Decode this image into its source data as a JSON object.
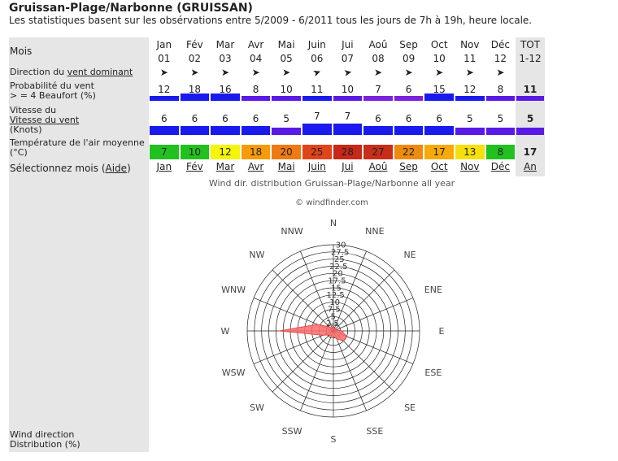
{
  "header": {
    "title": "Gruissan-Plage/Narbonne (GRUISSAN)",
    "subtitle": "Les statistiques basent sur les obsérvations entre 5/2009 - 6/2011 tous les jours de 7h à 19h, heure locale."
  },
  "labels": {
    "mois": "Mois",
    "direction_prefix": "Direction du ",
    "direction_link": "vent dominant",
    "prob_line1": "Probabilité du vent",
    "prob_line2": "> = 4 Beaufort (%)",
    "speed_line1": "Vitesse du",
    "speed_link": "Vitesse du vent",
    "speed_line3": "(Knots)",
    "temp_line1": "Température de l'air moyenne",
    "temp_line2": "(°C)",
    "select_prefix": "Sélectionnez mois (",
    "select_link": "Aide",
    "select_suffix": ")",
    "wind_dist_line1": "Wind direction",
    "wind_dist_line2": "Distribution (%)"
  },
  "months": [
    {
      "name": "Jan",
      "num": "01",
      "dir": "➤",
      "prob": "12",
      "speed": "6",
      "temp": "7",
      "sel": "Jan",
      "tempcolor": "#22c11f",
      "probcolor": "#1a1aee",
      "speedcolor": "#1a1aee"
    },
    {
      "name": "Fév",
      "num": "02",
      "dir": "➤",
      "prob": "18",
      "speed": "6",
      "temp": "10",
      "sel": "Fév",
      "tempcolor": "#22c11f",
      "probcolor": "#1a1aee",
      "speedcolor": "#1a1aee"
    },
    {
      "name": "Mar",
      "num": "03",
      "dir": "➤",
      "prob": "16",
      "speed": "6",
      "temp": "12",
      "sel": "Mar",
      "tempcolor": "#f5f50a",
      "probcolor": "#1a1aee",
      "speedcolor": "#1a1aee"
    },
    {
      "name": "Avr",
      "num": "04",
      "dir": "➤",
      "prob": "8",
      "speed": "6",
      "temp": "18",
      "sel": "Avr",
      "tempcolor": "#f59b0a",
      "probcolor": "#5a1ae6",
      "speedcolor": "#1a1aee"
    },
    {
      "name": "Mai",
      "num": "05",
      "dir": "➤",
      "prob": "10",
      "speed": "5",
      "temp": "20",
      "sel": "Mai",
      "tempcolor": "#ee7a12",
      "probcolor": "#5a1ae6",
      "speedcolor": "#5a1ae6"
    },
    {
      "name": "Juin",
      "num": "06",
      "dir": "➤",
      "prob": "11",
      "speed": "7",
      "temp": "25",
      "sel": "Juin",
      "tempcolor": "#e0441a",
      "probcolor": "#1a1aee",
      "speedcolor": "#1a1aee"
    },
    {
      "name": "Jui",
      "num": "07",
      "dir": "➤",
      "prob": "10",
      "speed": "7",
      "temp": "28",
      "sel": "Jui",
      "tempcolor": "#c8281a",
      "probcolor": "#5a1ae6",
      "speedcolor": "#1a1aee"
    },
    {
      "name": "Aoû",
      "num": "08",
      "dir": "➤",
      "prob": "7",
      "speed": "6",
      "temp": "27",
      "sel": "Aoû",
      "tempcolor": "#c82e1a",
      "probcolor": "#7a22dc",
      "speedcolor": "#1a1aee"
    },
    {
      "name": "Sep",
      "num": "09",
      "dir": "➤",
      "prob": "6",
      "speed": "6",
      "temp": "22",
      "sel": "Sep",
      "tempcolor": "#ee8a10",
      "probcolor": "#7a22dc",
      "speedcolor": "#1a1aee"
    },
    {
      "name": "Oct",
      "num": "10",
      "dir": "➤",
      "prob": "15",
      "speed": "6",
      "temp": "17",
      "sel": "Oct",
      "tempcolor": "#f5aa0a",
      "probcolor": "#1a1aee",
      "speedcolor": "#1a1aee"
    },
    {
      "name": "Nov",
      "num": "11",
      "dir": "➤",
      "prob": "12",
      "speed": "5",
      "temp": "13",
      "sel": "Nov",
      "tempcolor": "#f5e00a",
      "probcolor": "#1a1aee",
      "speedcolor": "#5a1ae6"
    },
    {
      "name": "Déc",
      "num": "12",
      "dir": "➤",
      "prob": "8",
      "speed": "5",
      "temp": "8",
      "sel": "Déc",
      "tempcolor": "#22c11f",
      "probcolor": "#5a1ae6",
      "speedcolor": "#5a1ae6"
    }
  ],
  "total": {
    "name": "TOT",
    "num": "1-12",
    "dir": "",
    "prob": "11",
    "speed": "5",
    "temp": "17",
    "sel": "An"
  },
  "rose": {
    "title": "Wind dir. distribution Gruissan-Plage/Narbonne all year",
    "credit": "© windfinder.com",
    "directions": [
      "N",
      "NNE",
      "NE",
      "ENE",
      "E",
      "ESE",
      "SE",
      "SSE",
      "S",
      "SSW",
      "SW",
      "WSW",
      "W",
      "WNW",
      "NW",
      "NNW"
    ],
    "values": [
      2,
      1,
      1,
      1,
      3,
      5,
      5,
      3,
      2,
      2,
      2,
      4,
      19,
      6,
      2,
      1
    ],
    "rings": [
      "2.5",
      "5",
      "7.5",
      "10",
      "12.5",
      "15",
      "17.5",
      "20",
      "22.5",
      "25",
      "27.5",
      "30"
    ],
    "max": 30,
    "fill": "#ff6b6b"
  }
}
